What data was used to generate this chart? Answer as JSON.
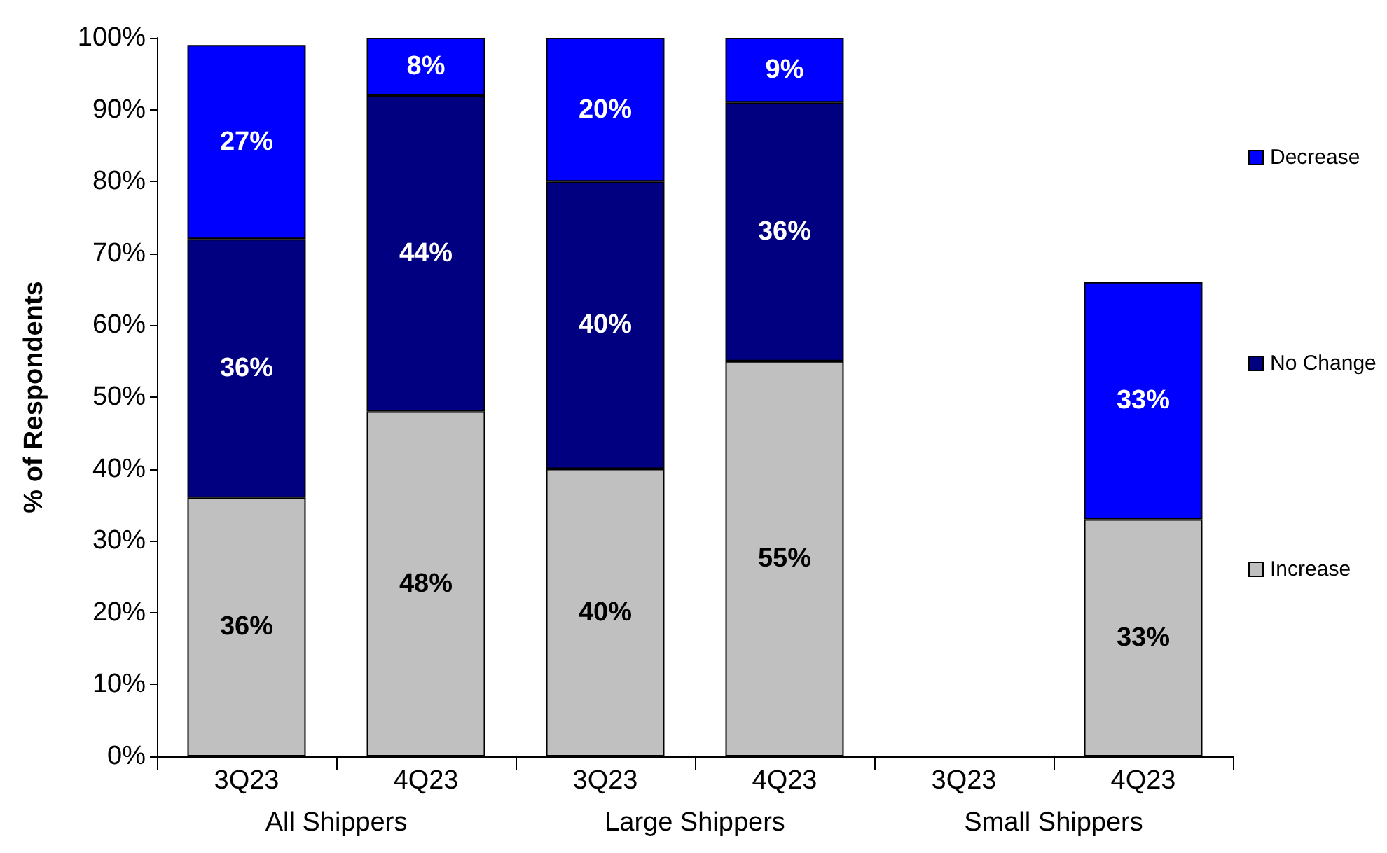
{
  "chart_data": {
    "type": "bar",
    "stacked": true,
    "ylabel": "% of Respondents",
    "categories": [
      "3Q23",
      "4Q23",
      "3Q23",
      "4Q23",
      "3Q23",
      "4Q23"
    ],
    "annotations": [
      "All Shippers",
      "Large Shippers",
      "Small Shippers"
    ],
    "series": [
      {
        "name": "Increase",
        "color": "#c0c0c0",
        "values": [
          36,
          48,
          40,
          55,
          null,
          33
        ],
        "value_labels": [
          "36%",
          "48%",
          "40%",
          "55%",
          null,
          "33%"
        ]
      },
      {
        "name": "No Change",
        "color": "#000080",
        "values": [
          36,
          44,
          40,
          36,
          null,
          null
        ],
        "value_labels": [
          "36%",
          "44%",
          "40%",
          "36%",
          null,
          null
        ]
      },
      {
        "name": "Decrease",
        "color": "#0000ff",
        "values": [
          27,
          8,
          20,
          9,
          null,
          33
        ],
        "value_labels": [
          "27%",
          "8%",
          "20%",
          "9%",
          null,
          "33%"
        ]
      }
    ],
    "ylim": [
      0,
      100
    ],
    "yticks": [
      {
        "value": 0,
        "label": "0%"
      },
      {
        "value": 10,
        "label": "10%"
      },
      {
        "value": 20,
        "label": "20%"
      },
      {
        "value": 30,
        "label": "30%"
      },
      {
        "value": 40,
        "label": "40%"
      },
      {
        "value": 50,
        "label": "50%"
      },
      {
        "value": 60,
        "label": "60%"
      },
      {
        "value": 70,
        "label": "70%"
      },
      {
        "value": 80,
        "label": "80%"
      },
      {
        "value": 90,
        "label": "90%"
      },
      {
        "value": 100,
        "label": "100%"
      }
    ],
    "grid": false,
    "legend": "right"
  }
}
